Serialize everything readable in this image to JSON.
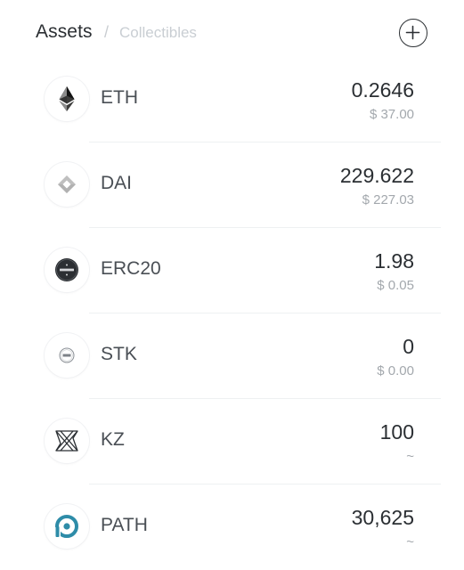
{
  "header": {
    "tabs": [
      {
        "label": "Assets",
        "active": true
      },
      {
        "label": "Collectibles",
        "active": false
      }
    ],
    "separator": "/",
    "add_icon": "plus-circle-icon"
  },
  "assets": [
    {
      "symbol": "ETH",
      "balance": "0.2646",
      "fiat": "$ 37.00",
      "icon": "eth-icon"
    },
    {
      "symbol": "DAI",
      "balance": "229.622",
      "fiat": "$ 227.03",
      "icon": "dai-icon"
    },
    {
      "symbol": "ERC20",
      "balance": "1.98",
      "fiat": "$ 0.05",
      "icon": "erc20-icon"
    },
    {
      "symbol": "STK",
      "balance": "0",
      "fiat": "$ 0.00",
      "icon": "stk-icon"
    },
    {
      "symbol": "KZ",
      "balance": "100",
      "fiat": "~",
      "icon": "kz-icon"
    },
    {
      "symbol": "PATH",
      "balance": "30,625",
      "fiat": "~",
      "icon": "path-icon"
    }
  ],
  "colors": {
    "text_primary": "#2b2f33",
    "text_secondary": "#a3a8ad",
    "inactive_tab": "#c9ced3",
    "path_brand": "#2e8ca8"
  }
}
